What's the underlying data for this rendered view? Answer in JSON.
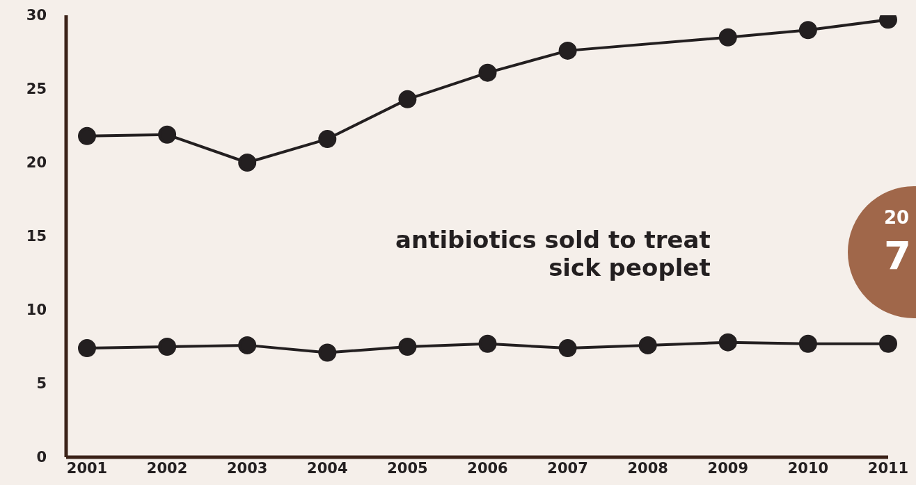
{
  "chart_data": {
    "type": "line",
    "categories": [
      "2001",
      "2002",
      "2003",
      "2004",
      "2005",
      "2006",
      "2007",
      "2008",
      "2009",
      "2010",
      "2011"
    ],
    "series": [
      {
        "color": "#231f20",
        "values": [
          21.8,
          21.9,
          20.0,
          21.6,
          24.3,
          26.1,
          27.6,
          null,
          28.5,
          29.0,
          29.7
        ]
      },
      {
        "name": "antibiotics sold to treat sick peoplet",
        "color": "#231f20",
        "values": [
          7.4,
          7.5,
          7.6,
          7.1,
          7.5,
          7.7,
          7.4,
          7.6,
          7.8,
          7.7,
          7.7
        ]
      }
    ],
    "ylim": [
      0,
      30
    ],
    "yticks": [
      0,
      5,
      10,
      15,
      20,
      25,
      30
    ],
    "grid": false,
    "legend": false,
    "marker": "circle",
    "line_style": "solid",
    "annotations": [
      "20",
      "7"
    ]
  }
}
